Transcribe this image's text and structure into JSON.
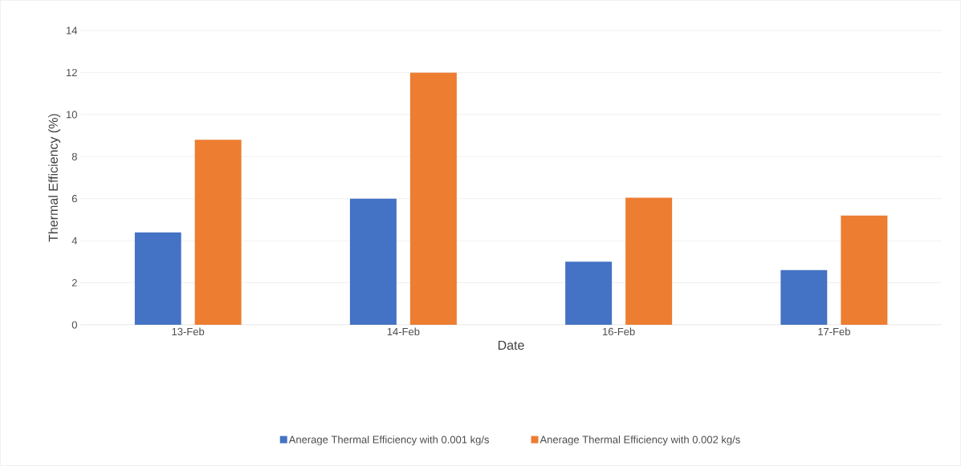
{
  "chart_data": {
    "type": "bar",
    "xlabel": "Date",
    "ylabel": "Thermal Efficiency (%)",
    "categories": [
      "13-Feb",
      "14-Feb",
      "16-Feb",
      "17-Feb"
    ],
    "series": [
      {
        "name": "Anerage Thermal Efficiency with 0.001 kg/s",
        "color": "#4472c4",
        "values": [
          4.4,
          6.0,
          3.0,
          2.6
        ]
      },
      {
        "name": "Anerage Thermal Efficiency with 0.002 kg/s",
        "color": "#ed7d31",
        "values": [
          8.8,
          12.0,
          6.05,
          5.2
        ]
      }
    ],
    "ylim": [
      0,
      14
    ],
    "yticks": [
      0,
      2,
      4,
      6,
      8,
      10,
      12,
      14
    ],
    "grid": "y",
    "legend": "bottom"
  }
}
